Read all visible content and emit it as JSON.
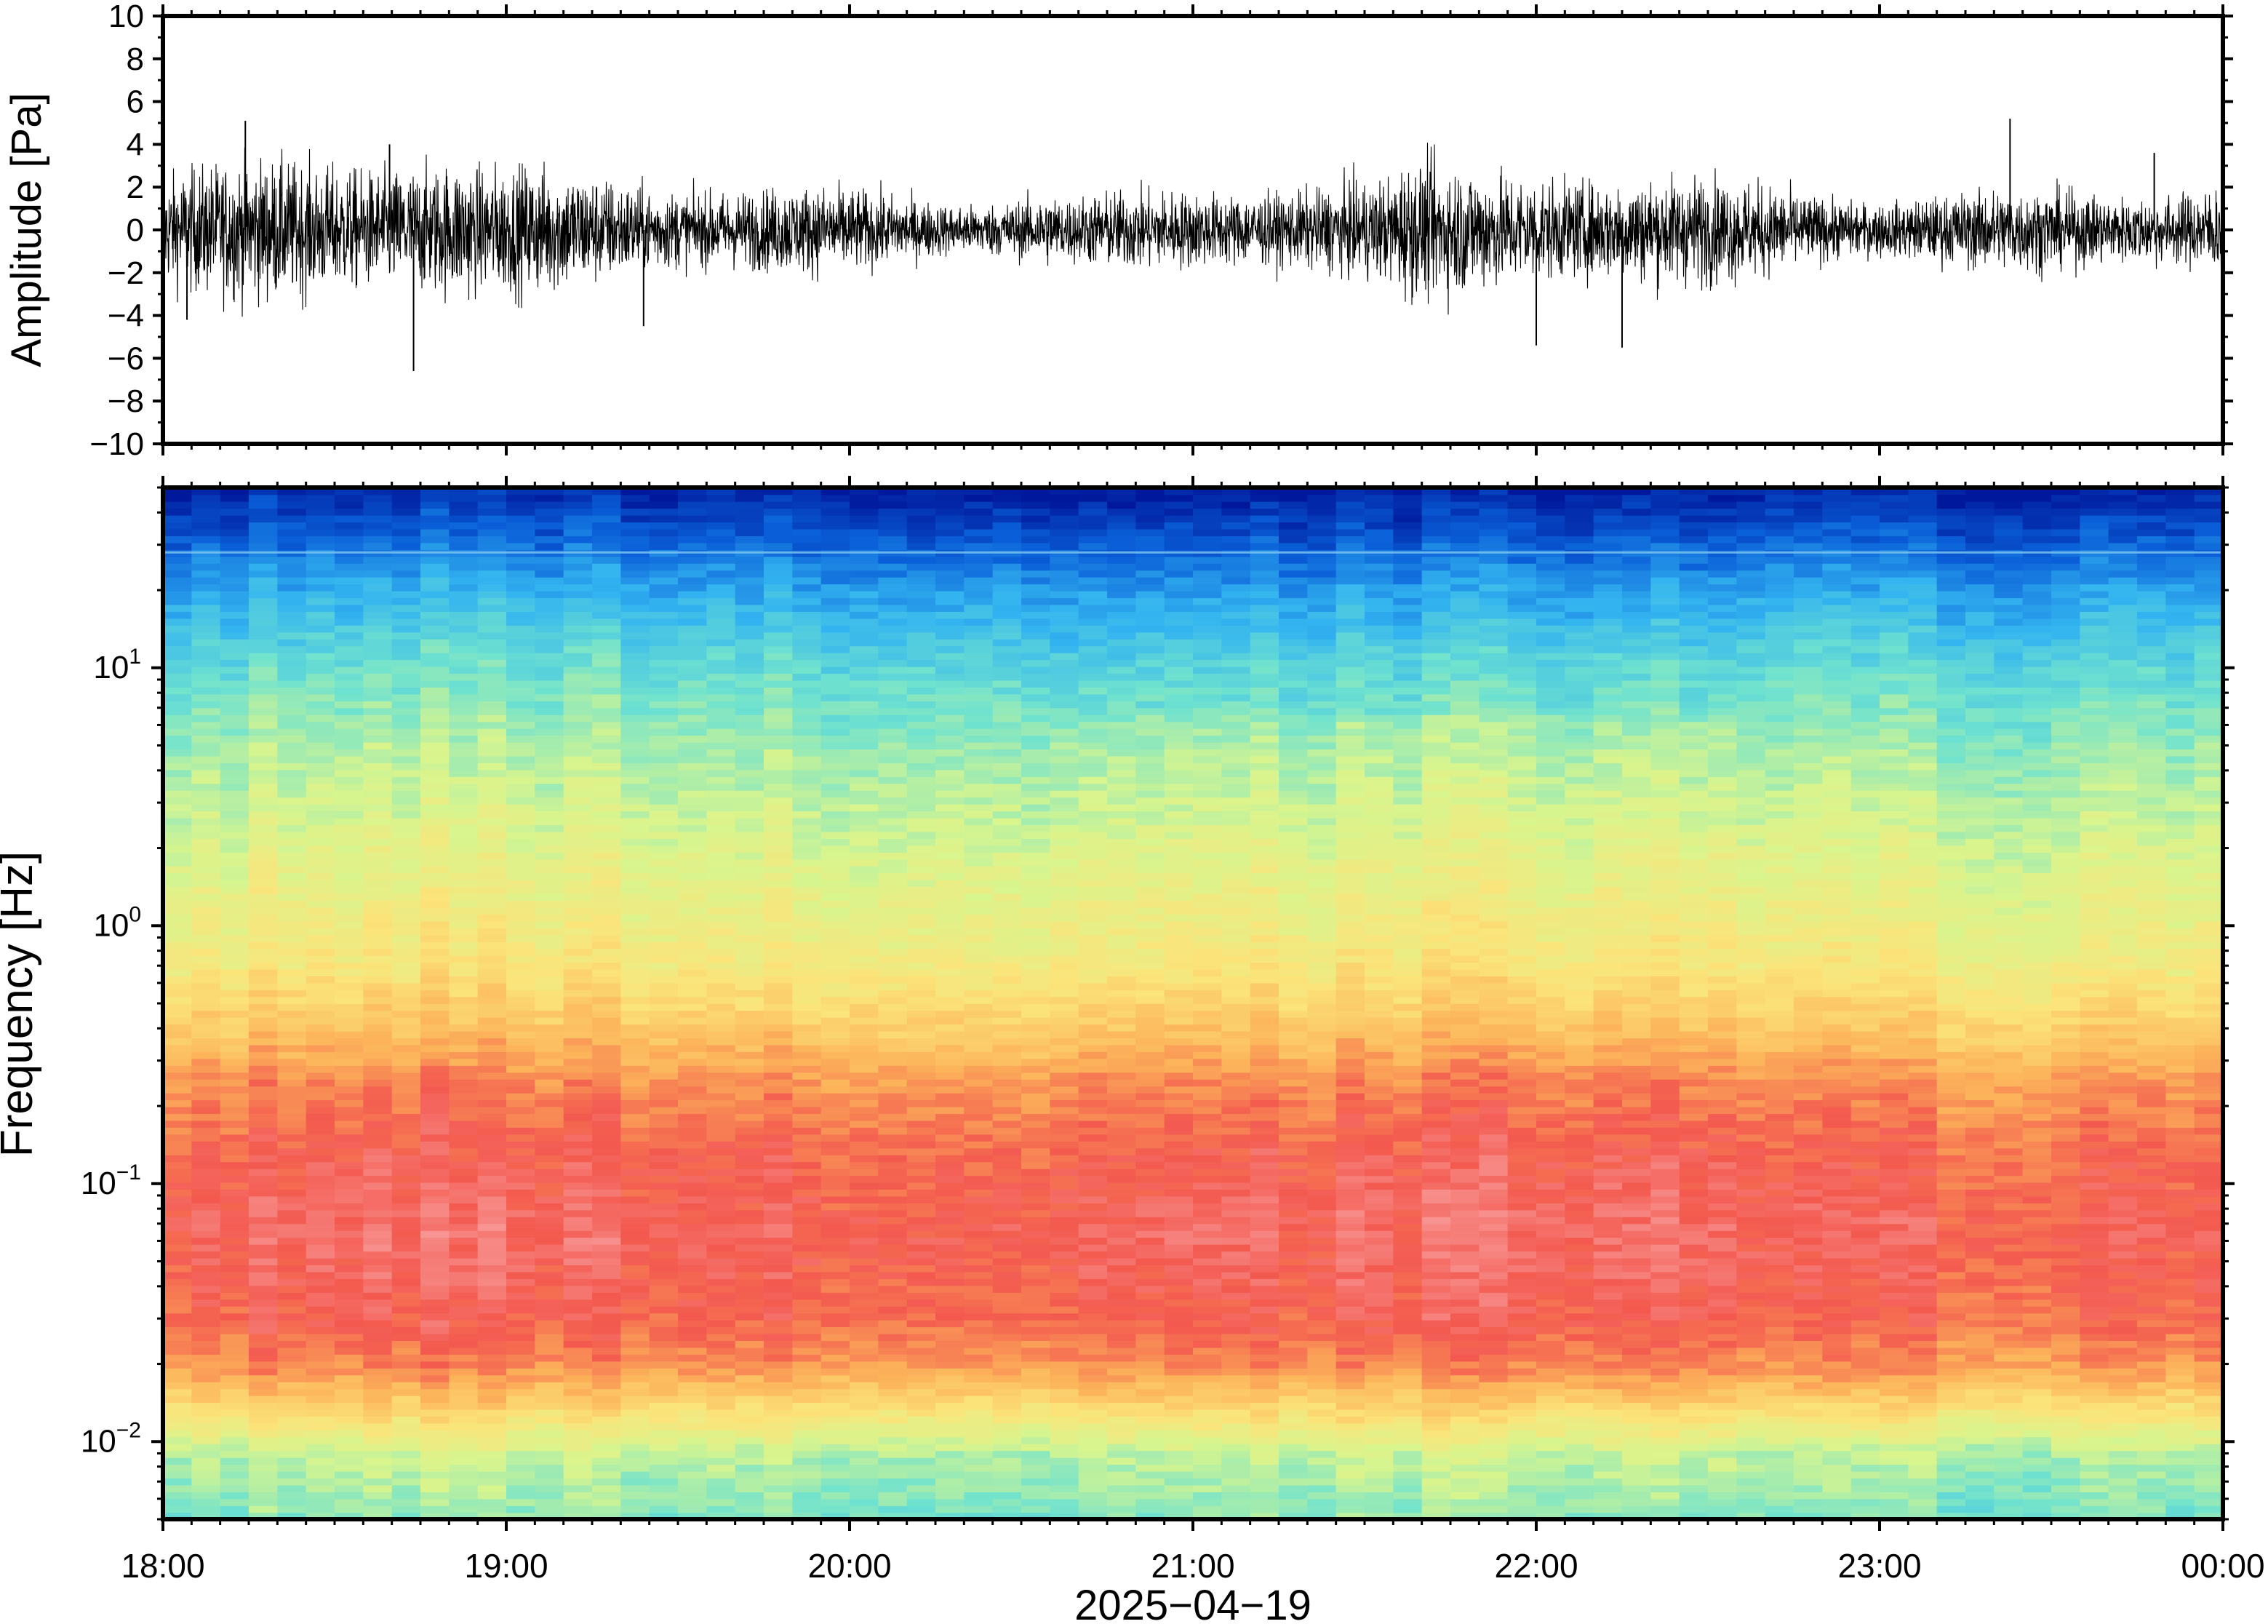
{
  "chart_data": [
    {
      "type": "line",
      "panel": "waveform",
      "ylabel": "Amplitude [Pa]",
      "ylim": [
        -10,
        10
      ],
      "yticks": [
        -10,
        -8,
        -6,
        -4,
        -2,
        0,
        2,
        4,
        6,
        8,
        10
      ],
      "ytick_labels": [
        "−10",
        "−8",
        "−6",
        "−4",
        "−2",
        "0",
        "2",
        "4",
        "6",
        "8",
        "10"
      ],
      "x_range_hours": [
        0,
        6
      ],
      "typical_envelope_pa": 2.2,
      "peaks": [
        {
          "t_hours": 0.73,
          "value": -6.6
        },
        {
          "t_hours": 0.66,
          "value": 4.0
        },
        {
          "t_hours": 0.24,
          "value": 5.1
        },
        {
          "t_hours": 5.38,
          "value": 5.2
        },
        {
          "t_hours": 4.0,
          "value": -5.4
        },
        {
          "t_hours": 1.4,
          "value": -4.5
        },
        {
          "t_hours": 0.07,
          "value": -4.2
        },
        {
          "t_hours": 4.25,
          "value": -5.5
        },
        {
          "t_hours": 5.8,
          "value": 3.6
        }
      ],
      "line_color": "#000000"
    },
    {
      "type": "heatmap",
      "panel": "spectrogram",
      "ylabel": "Frequency [Hz]",
      "yscale": "log",
      "ylim": [
        0.005,
        50
      ],
      "yticks": [
        0.01,
        0.1,
        1,
        10
      ],
      "ytick_labels": [
        {
          "base": "10",
          "exp": "−2"
        },
        {
          "base": "10",
          "exp": "−1"
        },
        {
          "base": "10",
          "exp": "0"
        },
        {
          "base": "10",
          "exp": "1"
        }
      ],
      "xlabel": "2025−04−19",
      "xtick_labels": [
        "18:00",
        "19:00",
        "20:00",
        "21:00",
        "22:00",
        "23:00",
        "00:00"
      ],
      "colormap": [
        "#00189b",
        "#0a5fd8",
        "#33b4f0",
        "#6fe2cf",
        "#d8f58e",
        "#fbe47a",
        "#fcb35a",
        "#f3594f",
        "#f9a7a7"
      ],
      "time_columns": 72,
      "tonal_line_hz": 28
    }
  ]
}
